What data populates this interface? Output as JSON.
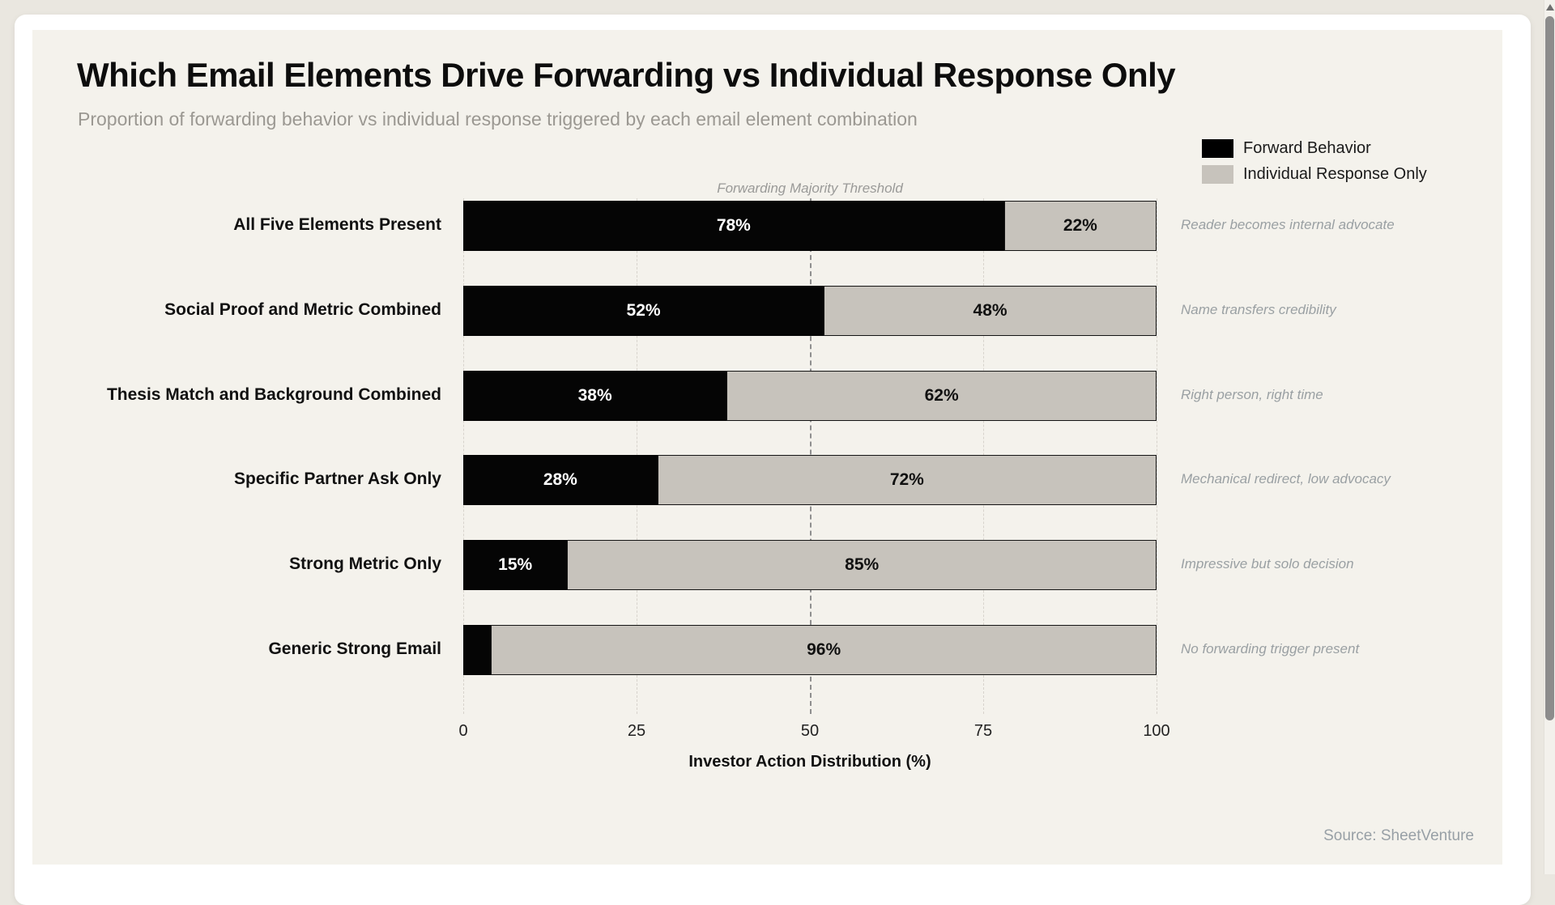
{
  "chart": {
    "title": "Which Email Elements Drive Forwarding vs Individual Response Only",
    "subtitle": "Proportion of forwarding behavior vs individual response triggered by each email element combination",
    "source": "Source: SheetVenture"
  },
  "chart_data": {
    "type": "bar",
    "orientation": "horizontal",
    "stacked": true,
    "title": "Which Email Elements Drive Forwarding vs Individual Response Only",
    "subtitle": "Proportion of forwarding behavior vs individual response triggered by each email element combination",
    "xlabel": "Investor Action Distribution (%)",
    "xlim": [
      0,
      100
    ],
    "x_ticks": [
      0,
      25,
      50,
      75,
      100
    ],
    "grid": "vertical-dashed",
    "legend_position": "top-right",
    "categories": [
      "All Five Elements Present",
      "Social Proof and Metric Combined",
      "Thesis Match and Background Combined",
      "Specific Partner Ask Only",
      "Strong Metric Only",
      "Generic Strong Email"
    ],
    "series": [
      {
        "name": "Forward Behavior",
        "color": "#000000",
        "values": [
          78,
          52,
          38,
          28,
          15,
          4
        ],
        "labels": [
          "78%",
          "52%",
          "38%",
          "28%",
          "15%",
          ""
        ]
      },
      {
        "name": "Individual Response Only",
        "color": "#c7c3bc",
        "values": [
          22,
          48,
          62,
          72,
          85,
          96
        ],
        "labels": [
          "22%",
          "48%",
          "62%",
          "72%",
          "85%",
          "96%"
        ]
      }
    ],
    "annotations": [
      "Reader becomes internal advocate",
      "Name transfers credibility",
      "Right person, right time",
      "Mechanical redirect, low advocacy",
      "Impressive but solo decision",
      "No forwarding trigger present"
    ],
    "threshold": {
      "x": 50,
      "label": "Forwarding Majority Threshold"
    }
  }
}
